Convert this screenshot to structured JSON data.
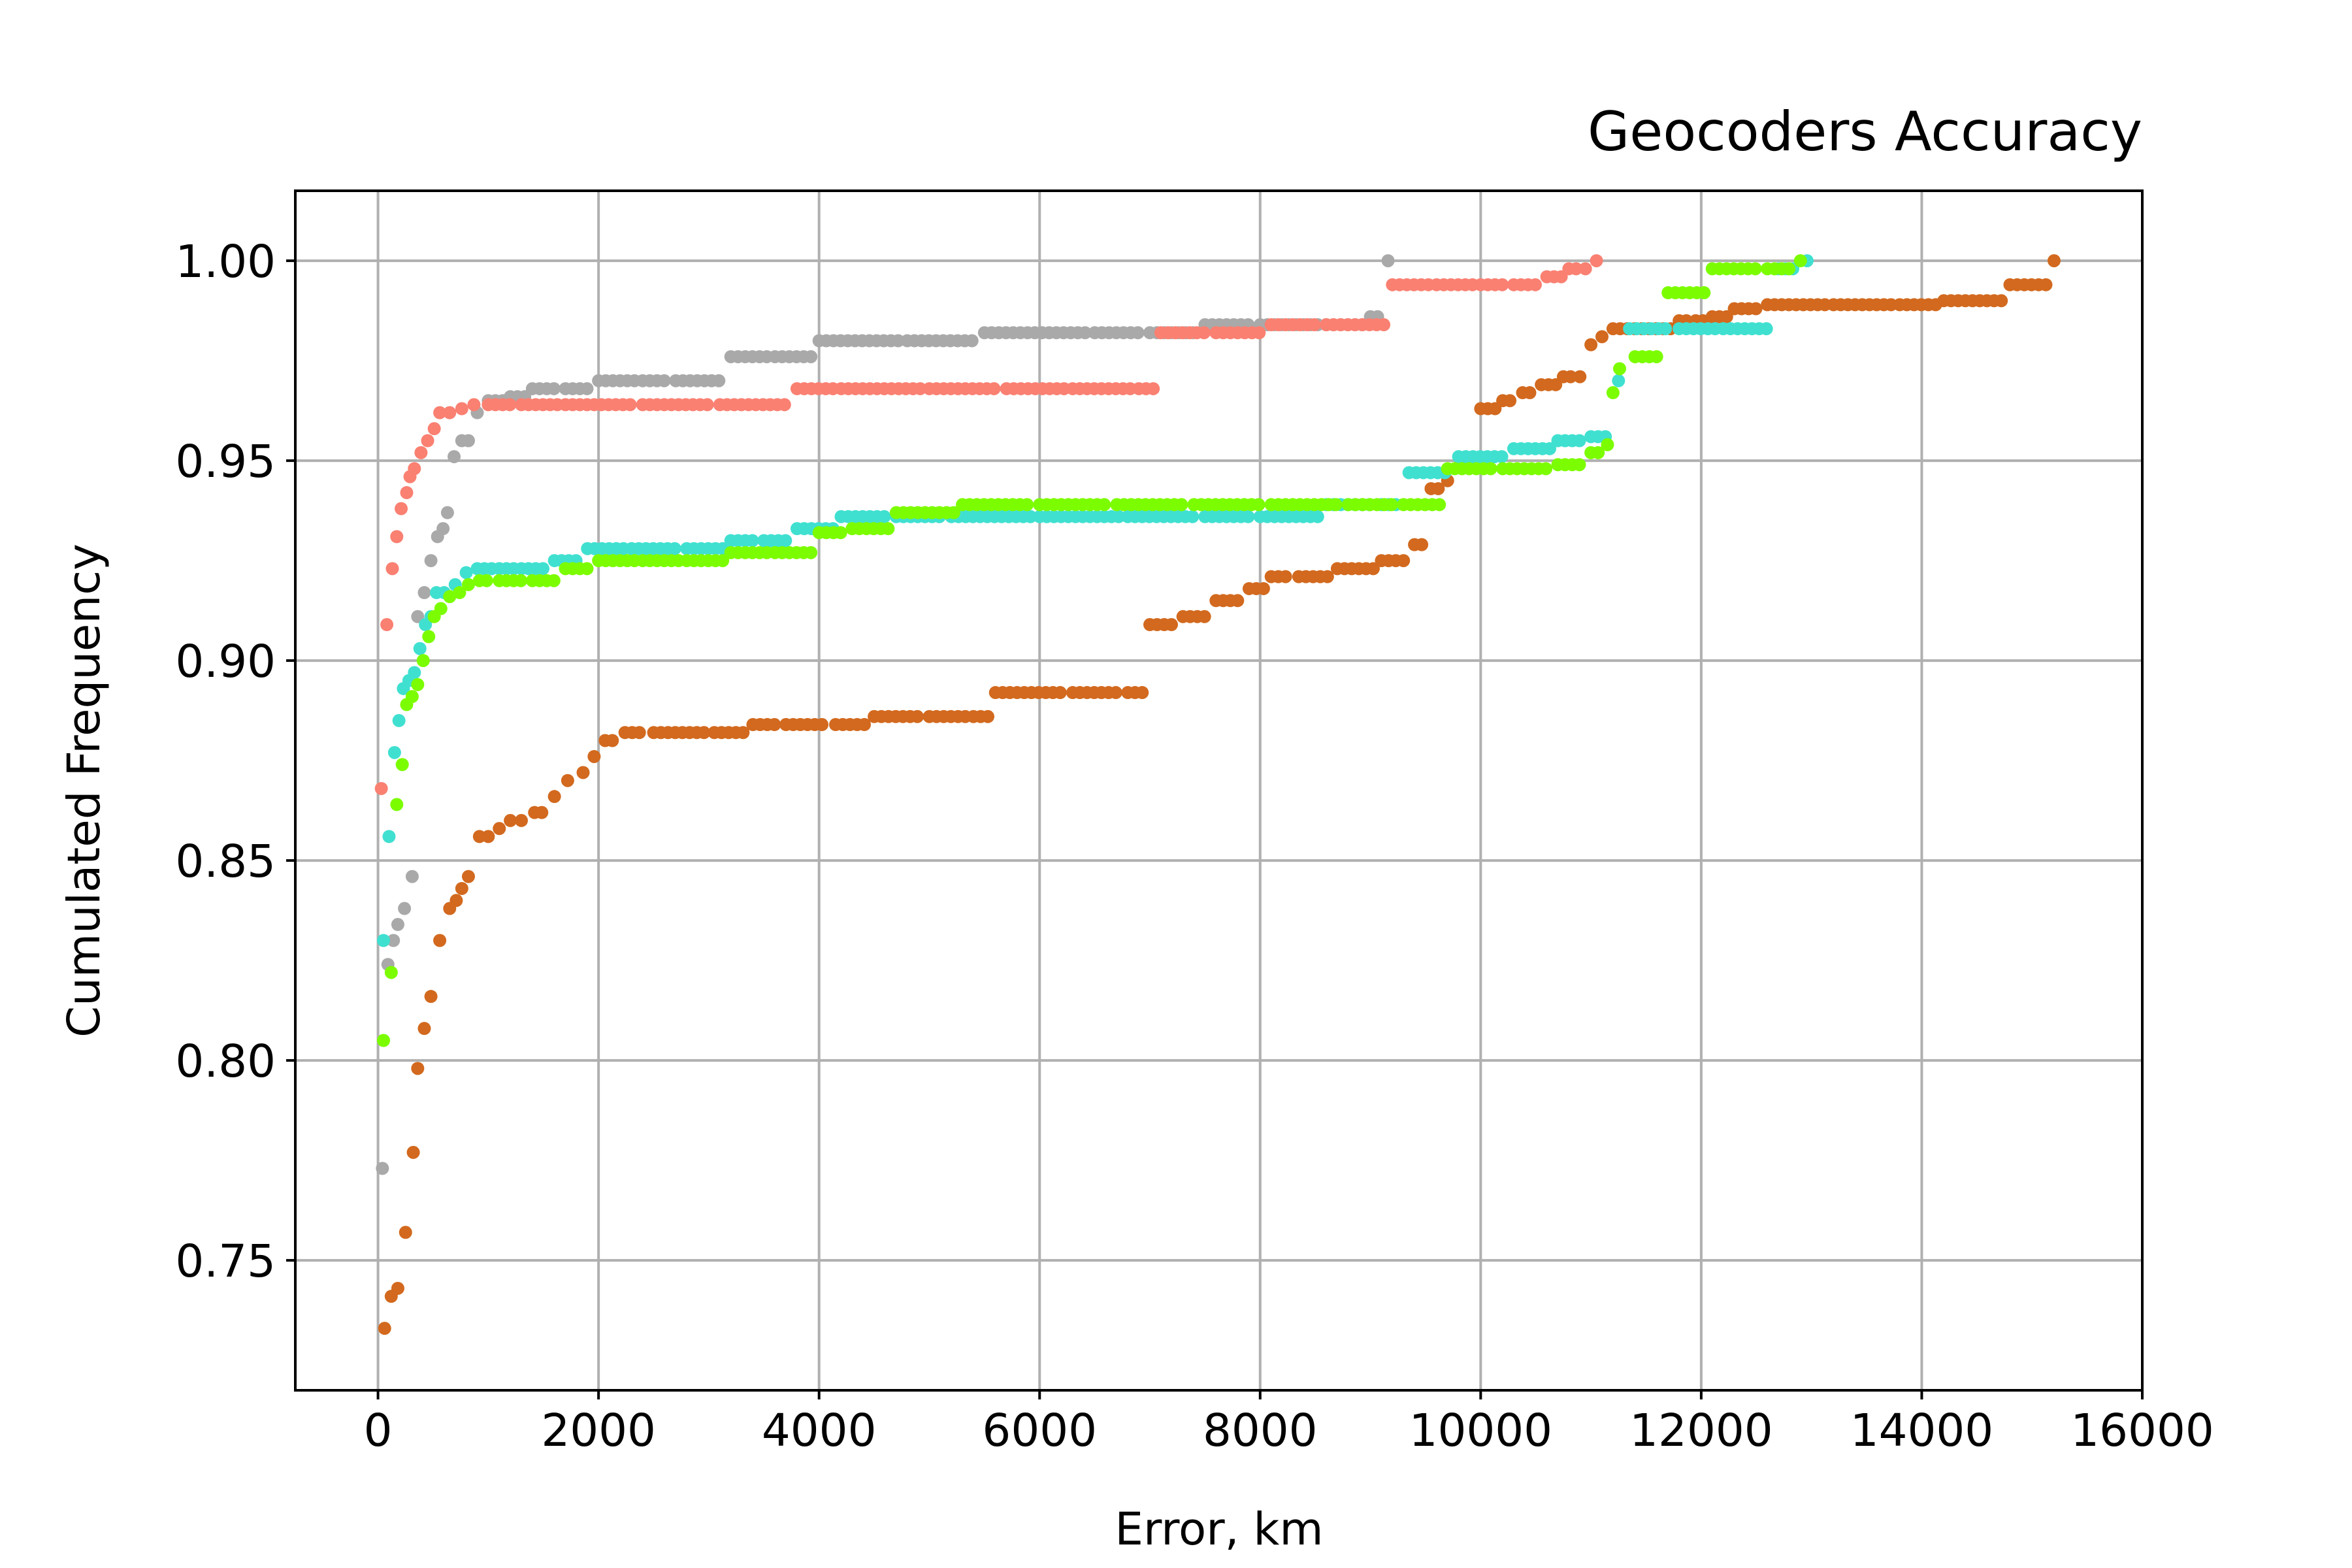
{
  "chart_data": {
    "type": "scatter",
    "title": "Geocoders Accuracy",
    "xlabel": "Error, km",
    "ylabel": "Cumulated Frequency",
    "xlim": [
      -750,
      16000
    ],
    "ylim": [
      0.7175,
      1.0175
    ],
    "xticks": [
      0,
      2000,
      4000,
      6000,
      8000,
      10000,
      12000,
      14000,
      16000
    ],
    "xtick_labels": [
      "0",
      "2000",
      "4000",
      "6000",
      "8000",
      "10000",
      "12000",
      "14000",
      "16000"
    ],
    "yticks": [
      0.75,
      0.8,
      0.85,
      0.9,
      0.95,
      1.0
    ],
    "ytick_labels": [
      "0.75",
      "0.80",
      "0.85",
      "0.90",
      "0.95",
      "1.00"
    ],
    "grid": true,
    "legend": "none",
    "series": [
      {
        "color": "#d2691e",
        "x": [
          60,
          120,
          180,
          250,
          320,
          360,
          420,
          480,
          560,
          650,
          710,
          760,
          820,
          920,
          1000,
          1100,
          1200,
          1300,
          1420,
          1600,
          1720,
          1860,
          1960,
          2060,
          2240,
          2500,
          3050,
          3400,
          3700,
          4150,
          4500,
          5000,
          5400,
          5600,
          6300,
          6800,
          7000,
          7300,
          7600,
          7900,
          8100,
          8350,
          8700,
          9100,
          9300,
          9400,
          9550,
          9700,
          9820,
          10000,
          10200,
          10380,
          10550,
          10750,
          10900,
          11000,
          11100,
          11200,
          11800,
          11950,
          12100,
          12300,
          12600,
          13200,
          13800,
          14200,
          14800,
          15200
        ],
        "y": [
          0.733,
          0.741,
          0.743,
          0.757,
          0.777,
          0.798,
          0.808,
          0.816,
          0.83,
          0.838,
          0.84,
          0.843,
          0.846,
          0.856,
          0.856,
          0.858,
          0.86,
          0.86,
          0.862,
          0.866,
          0.87,
          0.872,
          0.876,
          0.88,
          0.882,
          0.882,
          0.882,
          0.884,
          0.884,
          0.884,
          0.886,
          0.886,
          0.886,
          0.892,
          0.892,
          0.892,
          0.909,
          0.911,
          0.915,
          0.918,
          0.921,
          0.921,
          0.923,
          0.925,
          0.925,
          0.929,
          0.943,
          0.945,
          0.95,
          0.963,
          0.965,
          0.967,
          0.969,
          0.971,
          0.971,
          0.979,
          0.981,
          0.983,
          0.985,
          0.985,
          0.986,
          0.988,
          0.989,
          0.989,
          0.989,
          0.99,
          0.994,
          1.0
        ]
      },
      {
        "color": "#a9a9a9",
        "x": [
          40,
          90,
          140,
          180,
          240,
          310,
          360,
          420,
          480,
          540,
          590,
          630,
          690,
          760,
          820,
          900,
          1000,
          1200,
          1400,
          1700,
          2000,
          2400,
          2700,
          3200,
          3600,
          4000,
          4800,
          5500,
          6500,
          7000,
          7500,
          8000,
          8600,
          9000,
          9160
        ],
        "y": [
          0.773,
          0.824,
          0.83,
          0.834,
          0.838,
          0.846,
          0.911,
          0.917,
          0.925,
          0.931,
          0.933,
          0.937,
          0.951,
          0.955,
          0.955,
          0.962,
          0.965,
          0.966,
          0.968,
          0.968,
          0.97,
          0.97,
          0.97,
          0.976,
          0.976,
          0.98,
          0.98,
          0.982,
          0.982,
          0.982,
          0.984,
          0.984,
          0.984,
          0.986,
          1.0
        ]
      },
      {
        "color": "#fa8072",
        "x": [
          30,
          80,
          130,
          170,
          210,
          260,
          290,
          330,
          390,
          450,
          510,
          560,
          650,
          760,
          870,
          1000,
          1300,
          1700,
          2400,
          3100,
          3800,
          4200,
          5000,
          5700,
          6300,
          6900,
          7100,
          7600,
          8100,
          8600,
          9200,
          9600,
          10000,
          10300,
          10600,
          10800,
          10950,
          11050
        ],
        "y": [
          0.868,
          0.909,
          0.923,
          0.931,
          0.938,
          0.942,
          0.946,
          0.948,
          0.952,
          0.955,
          0.958,
          0.962,
          0.962,
          0.963,
          0.964,
          0.964,
          0.964,
          0.964,
          0.964,
          0.964,
          0.968,
          0.968,
          0.968,
          0.968,
          0.968,
          0.968,
          0.982,
          0.982,
          0.984,
          0.984,
          0.994,
          0.994,
          0.994,
          0.994,
          0.996,
          0.998,
          0.998,
          1.0
        ]
      },
      {
        "color": "#40e0d0",
        "x": [
          50,
          100,
          150,
          190,
          230,
          280,
          330,
          380,
          430,
          480,
          530,
          600,
          700,
          800,
          900,
          1100,
          1300,
          1600,
          1900,
          2300,
          2800,
          3200,
          3500,
          3800,
          4200,
          4700,
          5200,
          6000,
          6800,
          7500,
          8000,
          8600,
          9100,
          9350,
          9800,
          10300,
          10700,
          11000,
          11250,
          11350,
          11800,
          12200,
          12700,
          12960
        ],
        "y": [
          0.83,
          0.856,
          0.877,
          0.885,
          0.893,
          0.895,
          0.897,
          0.903,
          0.909,
          0.911,
          0.917,
          0.917,
          0.919,
          0.922,
          0.923,
          0.923,
          0.923,
          0.925,
          0.928,
          0.928,
          0.928,
          0.93,
          0.93,
          0.933,
          0.936,
          0.936,
          0.936,
          0.936,
          0.936,
          0.936,
          0.936,
          0.939,
          0.939,
          0.947,
          0.951,
          0.953,
          0.955,
          0.956,
          0.97,
          0.983,
          0.983,
          0.983,
          0.998,
          1.0
        ]
      },
      {
        "color": "#7cfc00",
        "x": [
          50,
          120,
          170,
          220,
          260,
          310,
          360,
          410,
          460,
          510,
          570,
          650,
          740,
          820,
          920,
          1100,
          1400,
          1700,
          2000,
          2400,
          2800,
          3200,
          3600,
          4000,
          4300,
          4700,
          5300,
          6000,
          6700,
          7400,
          8100,
          8800,
          9300,
          9700,
          10200,
          10700,
          11000,
          11150,
          11200,
          11260,
          11400,
          11700,
          12100,
          12600,
          12900
        ],
        "y": [
          0.805,
          0.822,
          0.864,
          0.874,
          0.889,
          0.891,
          0.894,
          0.9,
          0.906,
          0.911,
          0.913,
          0.916,
          0.917,
          0.919,
          0.92,
          0.92,
          0.92,
          0.923,
          0.925,
          0.925,
          0.925,
          0.927,
          0.927,
          0.932,
          0.933,
          0.937,
          0.939,
          0.939,
          0.939,
          0.939,
          0.939,
          0.939,
          0.939,
          0.948,
          0.948,
          0.949,
          0.952,
          0.954,
          0.967,
          0.973,
          0.976,
          0.992,
          0.998,
          0.998,
          1.0
        ]
      }
    ]
  }
}
